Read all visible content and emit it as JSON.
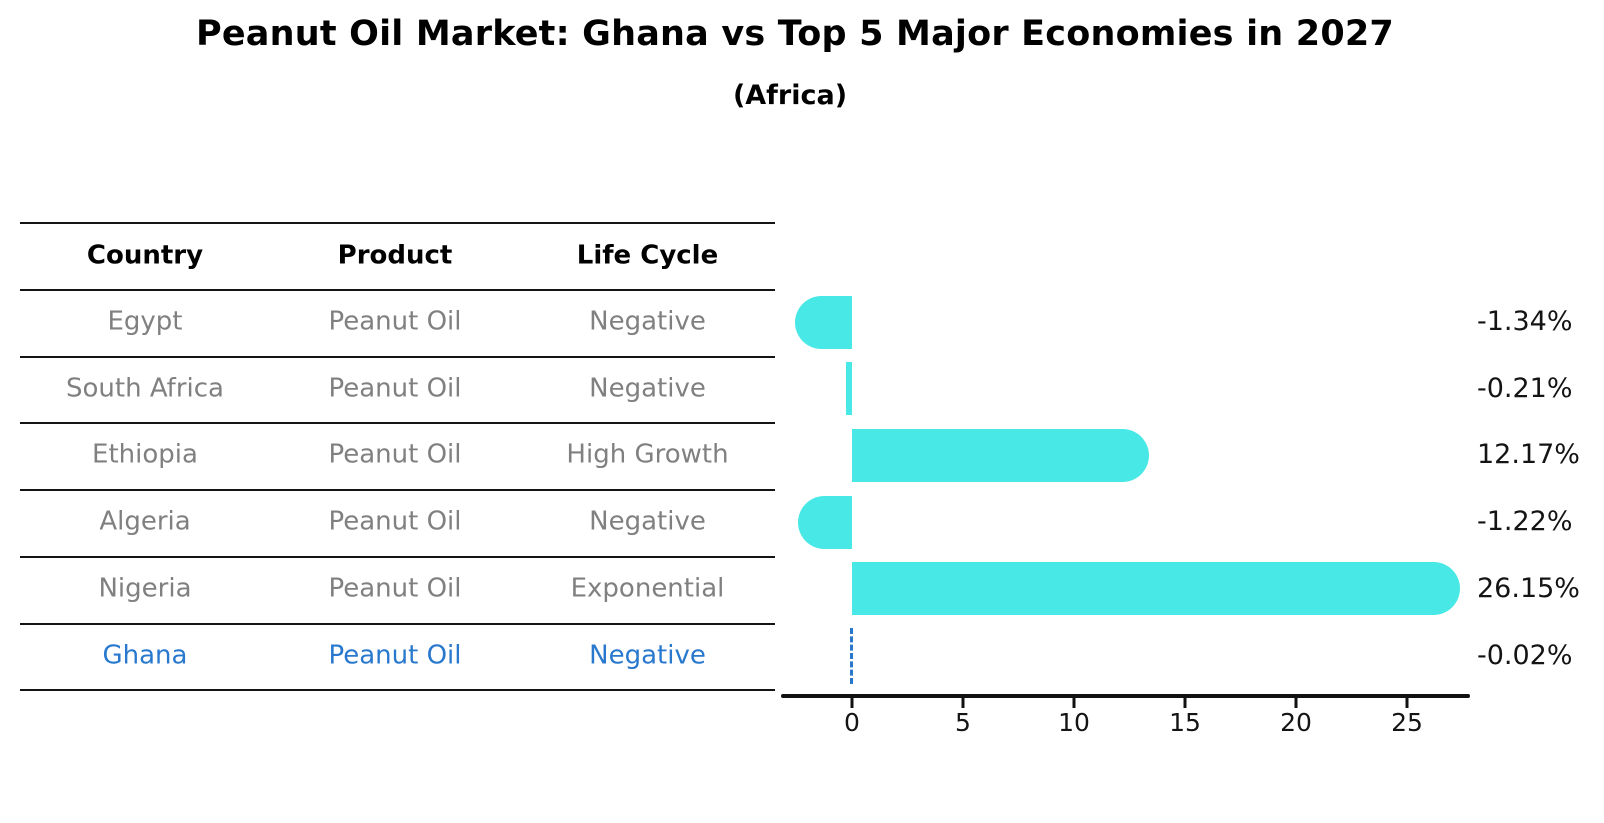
{
  "title": "Peanut Oil Market: Ghana vs Top 5 Major Economies in 2027",
  "subtitle": "(Africa)",
  "table": {
    "headers": {
      "country": "Country",
      "product": "Product",
      "life_cycle": "Life Cycle"
    },
    "rows": [
      {
        "country": "Egypt",
        "product": "Peanut Oil",
        "life_cycle": "Negative",
        "highlight": false
      },
      {
        "country": "South Africa",
        "product": "Peanut Oil",
        "life_cycle": "Negative",
        "highlight": false
      },
      {
        "country": "Ethiopia",
        "product": "Peanut Oil",
        "life_cycle": "High Growth",
        "highlight": false
      },
      {
        "country": "Algeria",
        "product": "Peanut Oil",
        "life_cycle": "Negative",
        "highlight": false
      },
      {
        "country": "Nigeria",
        "product": "Peanut Oil",
        "life_cycle": "Exponential",
        "highlight": false
      },
      {
        "country": "Ghana",
        "product": "Peanut Oil",
        "life_cycle": "Negative",
        "highlight": true
      }
    ]
  },
  "chart_data": {
    "type": "bar",
    "orientation": "horizontal",
    "title": "Peanut Oil Market: Ghana vs Top 5 Major Economies in 2027 (Africa)",
    "categories": [
      "Egypt",
      "South Africa",
      "Ethiopia",
      "Algeria",
      "Nigeria",
      "Ghana"
    ],
    "values": [
      -1.34,
      -0.21,
      12.17,
      -1.22,
      26.15,
      -0.02
    ],
    "value_labels": [
      "-1.34%",
      "-0.21%",
      "12.17%",
      "-1.22%",
      "26.15%",
      "-0.02%"
    ],
    "xtick_labels": [
      "0",
      "5",
      "10",
      "15",
      "20",
      "25"
    ],
    "xtick_values": [
      0,
      5,
      10,
      15,
      20,
      25
    ],
    "xlim": [
      -3.2,
      27.8
    ],
    "grid": false,
    "legend": "none",
    "highlight_category": "Ghana",
    "highlight_style": "dashed-zero-line"
  },
  "colors": {
    "bar": "#48E8E6",
    "highlight": "#2878CE",
    "cell_text": "#808080",
    "axis_text": "#141414",
    "background": "#FFFFFF"
  }
}
